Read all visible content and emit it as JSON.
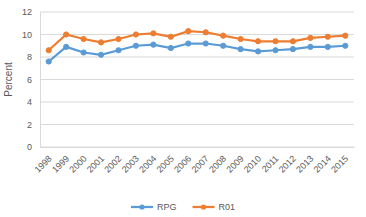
{
  "chart_data": {
    "type": "line",
    "y_label": "Percent",
    "categories": [
      "1998",
      "1999",
      "2000",
      "2001",
      "2002",
      "2003",
      "2004",
      "2005",
      "2006",
      "2007",
      "2008",
      "2009",
      "2010",
      "2011",
      "2012",
      "2013",
      "2014",
      "2015"
    ],
    "series": [
      {
        "name": "RPG",
        "color": "#5b9bd5",
        "marker": "circle",
        "values": [
          7.6,
          8.9,
          8.4,
          8.2,
          8.6,
          9.0,
          9.1,
          8.8,
          9.2,
          9.2,
          9.0,
          8.7,
          8.5,
          8.6,
          8.7,
          8.9,
          8.9,
          9.0
        ]
      },
      {
        "name": "R01",
        "color": "#ed7d31",
        "marker": "circle",
        "values": [
          8.6,
          10.0,
          9.6,
          9.3,
          9.6,
          10.0,
          10.1,
          9.8,
          10.3,
          10.2,
          9.9,
          9.6,
          9.4,
          9.4,
          9.4,
          9.7,
          9.8,
          9.9
        ]
      }
    ],
    "ylim": [
      0,
      12
    ],
    "yticks": [
      0,
      2,
      4,
      6,
      8,
      10,
      12
    ],
    "grid": true,
    "legend": "bottom"
  }
}
